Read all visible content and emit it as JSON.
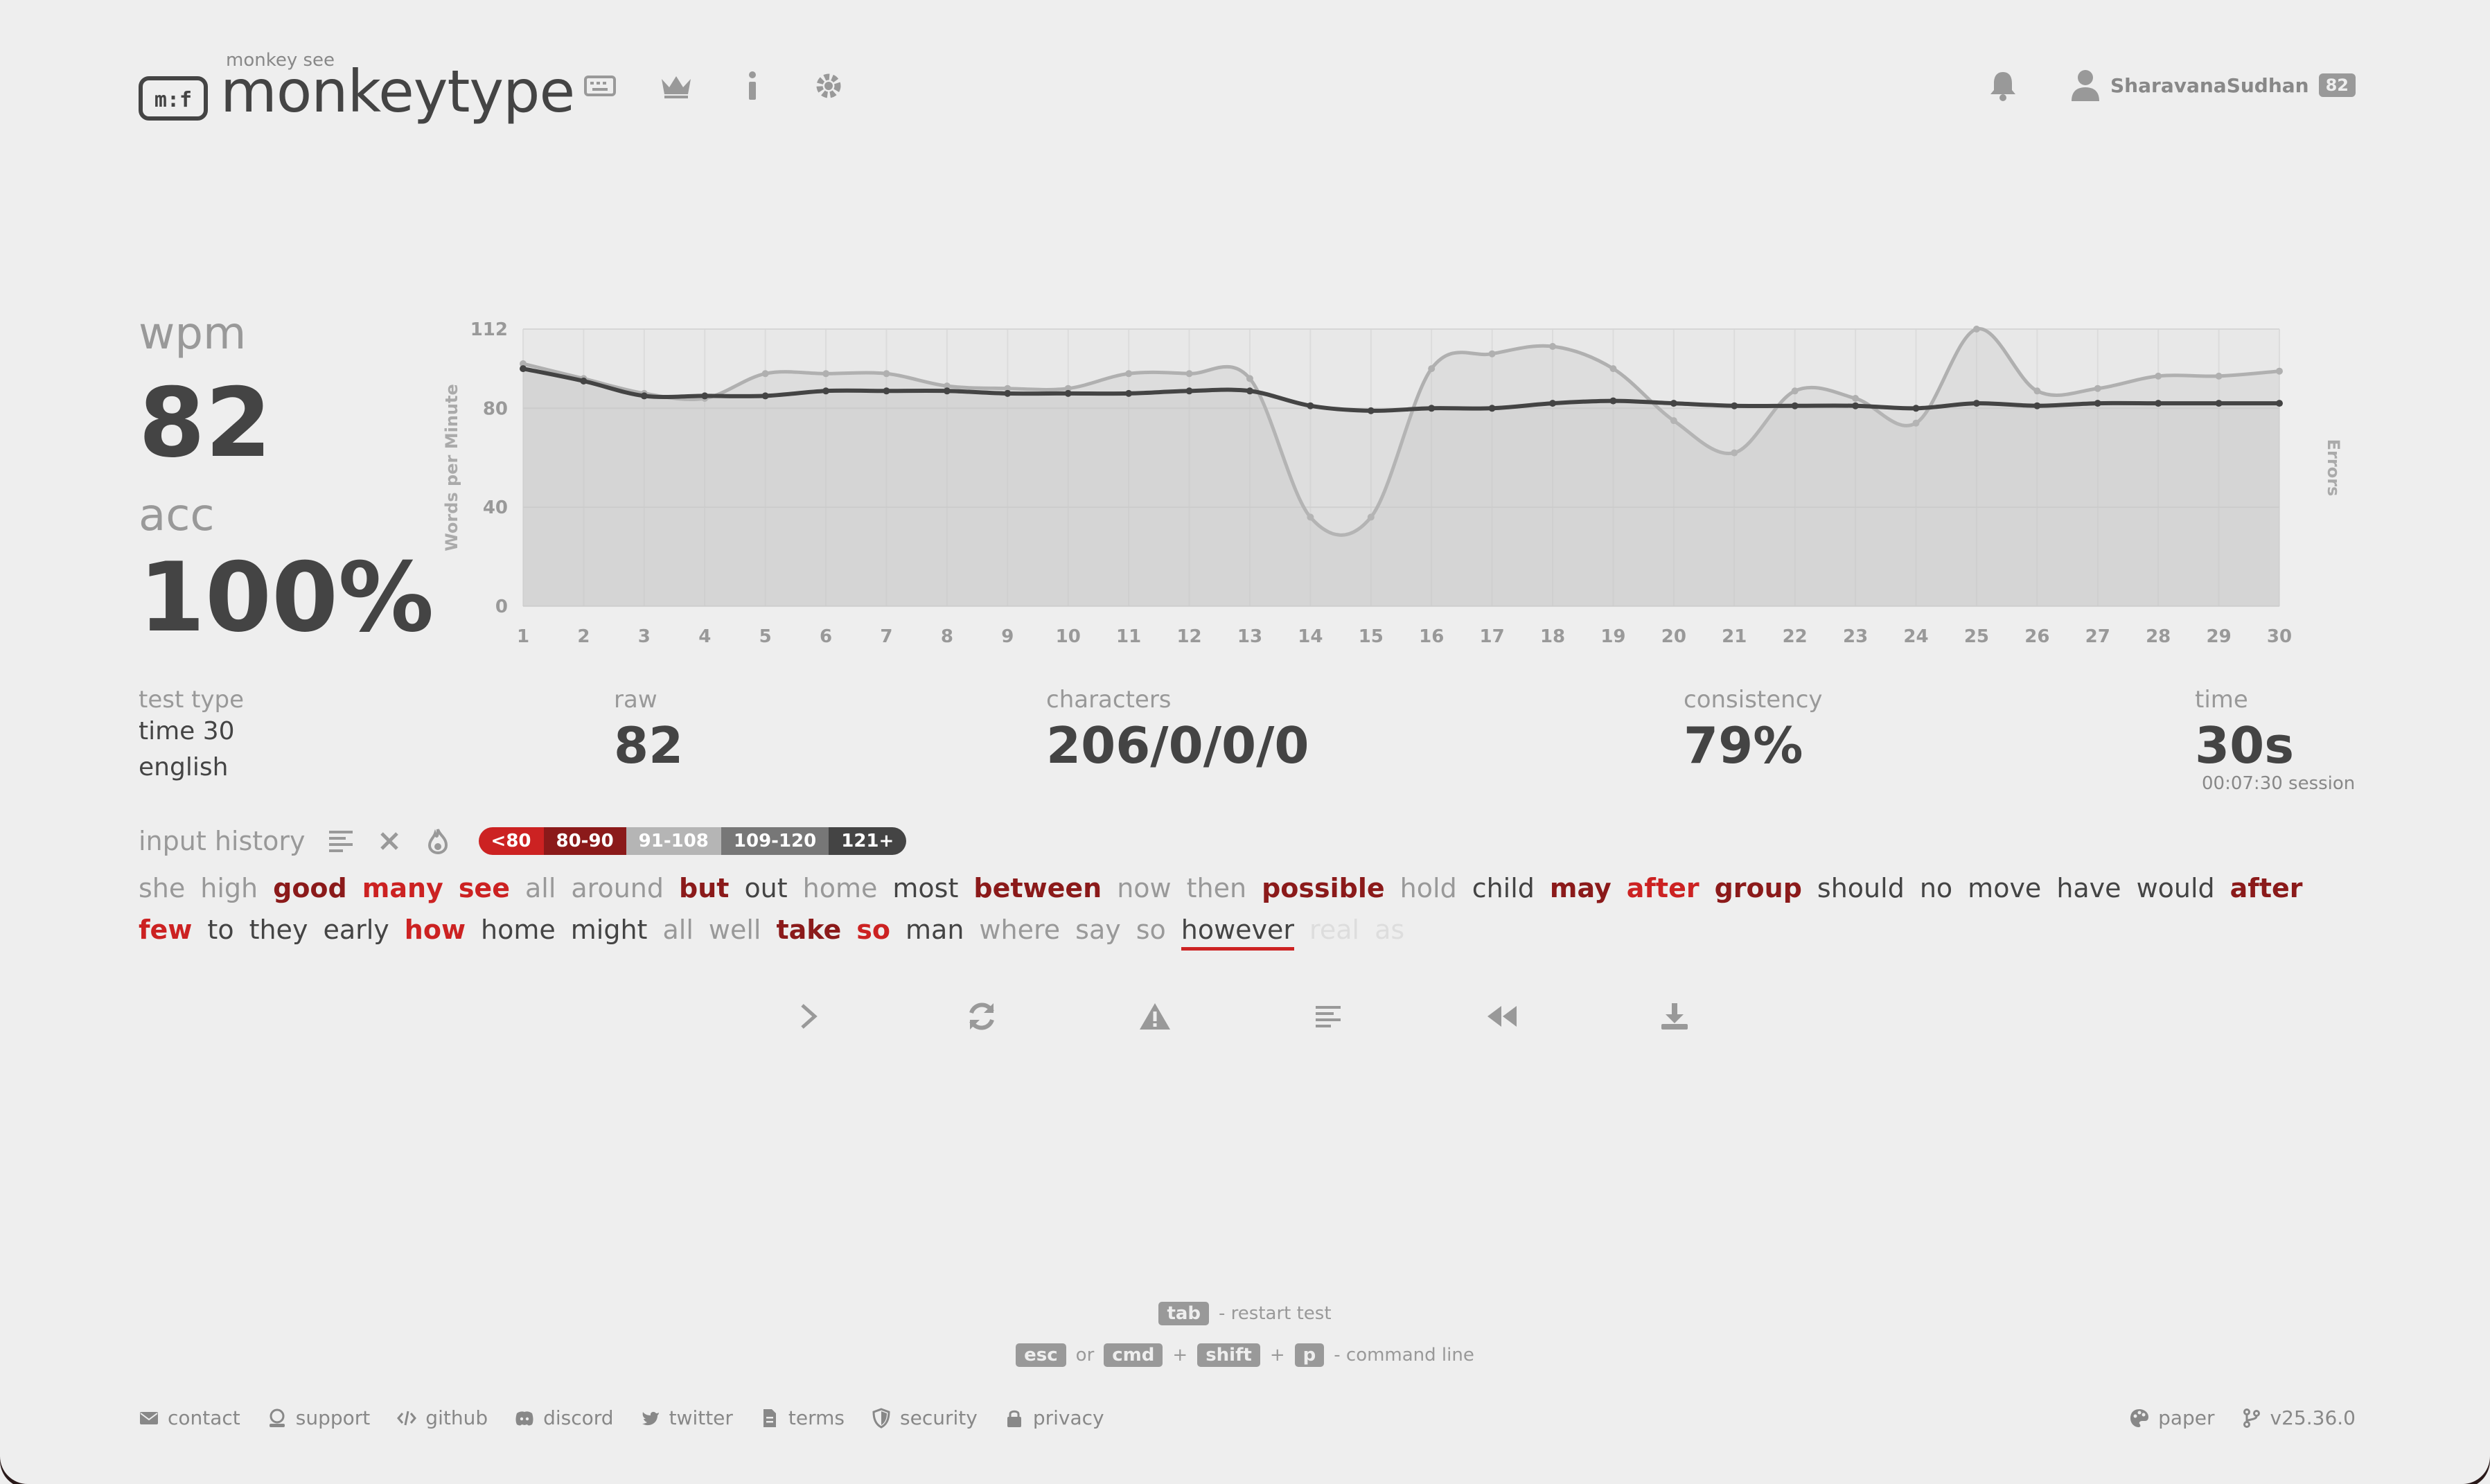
{
  "header": {
    "logo_top": "monkey see",
    "logo_text": "monkeytype",
    "nav_icons": [
      "keyboard-icon",
      "crown-icon",
      "info-icon",
      "gear-icon"
    ],
    "username": "SharavanaSudhan",
    "level": "82"
  },
  "result": {
    "wpm_label": "wpm",
    "wpm_value": "82",
    "acc_label": "acc",
    "acc_value": "100%",
    "test_type_label": "test type",
    "test_type_mode": "time 30",
    "test_type_lang": "english",
    "raw_label": "raw",
    "raw_value": "82",
    "characters_label": "characters",
    "characters_value": "206/0/0/0",
    "consistency_label": "consistency",
    "consistency_value": "79%",
    "time_label": "time",
    "time_value": "30s",
    "session": "00:07:30 session"
  },
  "chart_data": {
    "type": "line",
    "ylabel": "Words per Minute",
    "y2label": "Errors",
    "ylim": [
      0,
      112
    ],
    "yticks": [
      "0",
      "40",
      "80",
      "112"
    ],
    "x": [
      1,
      2,
      3,
      4,
      5,
      6,
      7,
      8,
      9,
      10,
      11,
      12,
      13,
      14,
      15,
      16,
      17,
      18,
      19,
      20,
      21,
      22,
      23,
      24,
      25,
      26,
      27,
      28,
      29,
      30
    ],
    "series": [
      {
        "values": [
          98,
          92,
          86,
          84,
          94,
          94,
          94,
          89,
          88,
          88,
          94,
          94,
          92,
          36,
          36,
          96,
          102,
          105,
          96,
          75,
          62,
          87,
          84,
          74,
          112,
          87,
          88,
          93,
          93,
          95
        ],
        "color": "#b0b0b0"
      },
      {
        "values": [
          96,
          91,
          85,
          85,
          85,
          87,
          87,
          87,
          86,
          86,
          86,
          87,
          87,
          81,
          79,
          80,
          80,
          82,
          83,
          82,
          81,
          81,
          81,
          80,
          82,
          81,
          82,
          82,
          82,
          82
        ]
      }
    ],
    "grid": true,
    "area_fill": true
  },
  "history": {
    "title": "input history",
    "legend": [
      {
        "label": "<80",
        "color": "#cc2222"
      },
      {
        "label": "80-90",
        "color": "#8b1a1a"
      },
      {
        "label": "91-108",
        "color": "#b5b5b5"
      },
      {
        "label": "109-120",
        "color": "#777777"
      },
      {
        "label": "121+",
        "color": "#444444"
      }
    ],
    "words": [
      {
        "t": "she",
        "c": 0
      },
      {
        "t": "high",
        "c": 0
      },
      {
        "t": "good",
        "c": 2
      },
      {
        "t": "many",
        "c": 3
      },
      {
        "t": "see",
        "c": 3
      },
      {
        "t": "all",
        "c": 0
      },
      {
        "t": "around",
        "c": 0
      },
      {
        "t": "but",
        "c": 2
      },
      {
        "t": "out",
        "c": 1
      },
      {
        "t": "home",
        "c": 0
      },
      {
        "t": "most",
        "c": 1
      },
      {
        "t": "between",
        "c": 2
      },
      {
        "t": "now",
        "c": 0
      },
      {
        "t": "then",
        "c": 0
      },
      {
        "t": "possible",
        "c": 2
      },
      {
        "t": "hold",
        "c": 0
      },
      {
        "t": "child",
        "c": 1
      },
      {
        "t": "may",
        "c": 2
      },
      {
        "t": "after",
        "c": 3
      },
      {
        "t": "group",
        "c": 2
      },
      {
        "t": "should",
        "c": 1
      },
      {
        "t": "no",
        "c": 1
      },
      {
        "t": "move",
        "c": 1
      },
      {
        "t": "have",
        "c": 1
      },
      {
        "t": "would",
        "c": 1
      },
      {
        "t": "after",
        "c": 2
      },
      {
        "t": "few",
        "c": 3
      },
      {
        "t": "to",
        "c": 1
      },
      {
        "t": "they",
        "c": 1
      },
      {
        "t": "early",
        "c": 1
      },
      {
        "t": "how",
        "c": 3
      },
      {
        "t": "home",
        "c": 1
      },
      {
        "t": "might",
        "c": 1
      },
      {
        "t": "all",
        "c": 0
      },
      {
        "t": "well",
        "c": 0
      },
      {
        "t": "take",
        "c": 2
      },
      {
        "t": "so",
        "c": 3
      },
      {
        "t": "man",
        "c": 1
      },
      {
        "t": "where",
        "c": 0
      },
      {
        "t": "say",
        "c": 0
      },
      {
        "t": "so",
        "c": 0
      },
      {
        "t": "however",
        "c": 1,
        "u": true
      },
      {
        "t": "real",
        "c": 4
      },
      {
        "t": "as",
        "c": 4
      }
    ]
  },
  "hints": {
    "tab_key": "tab",
    "tab_text": "- restart test",
    "esc_key": "esc",
    "or": "or",
    "cmd_key": "cmd",
    "plus": "+",
    "shift_key": "shift",
    "p_key": "p",
    "cmd_text": "- command line"
  },
  "footer": {
    "links": [
      {
        "label": "contact",
        "icon": "envelope-icon"
      },
      {
        "label": "support",
        "icon": "donate-icon"
      },
      {
        "label": "github",
        "icon": "code-icon"
      },
      {
        "label": "discord",
        "icon": "discord-icon"
      },
      {
        "label": "twitter",
        "icon": "twitter-icon"
      },
      {
        "label": "terms",
        "icon": "document-icon"
      },
      {
        "label": "security",
        "icon": "shield-icon"
      },
      {
        "label": "privacy",
        "icon": "lock-icon"
      }
    ],
    "theme": "paper",
    "version": "v25.36.0"
  }
}
